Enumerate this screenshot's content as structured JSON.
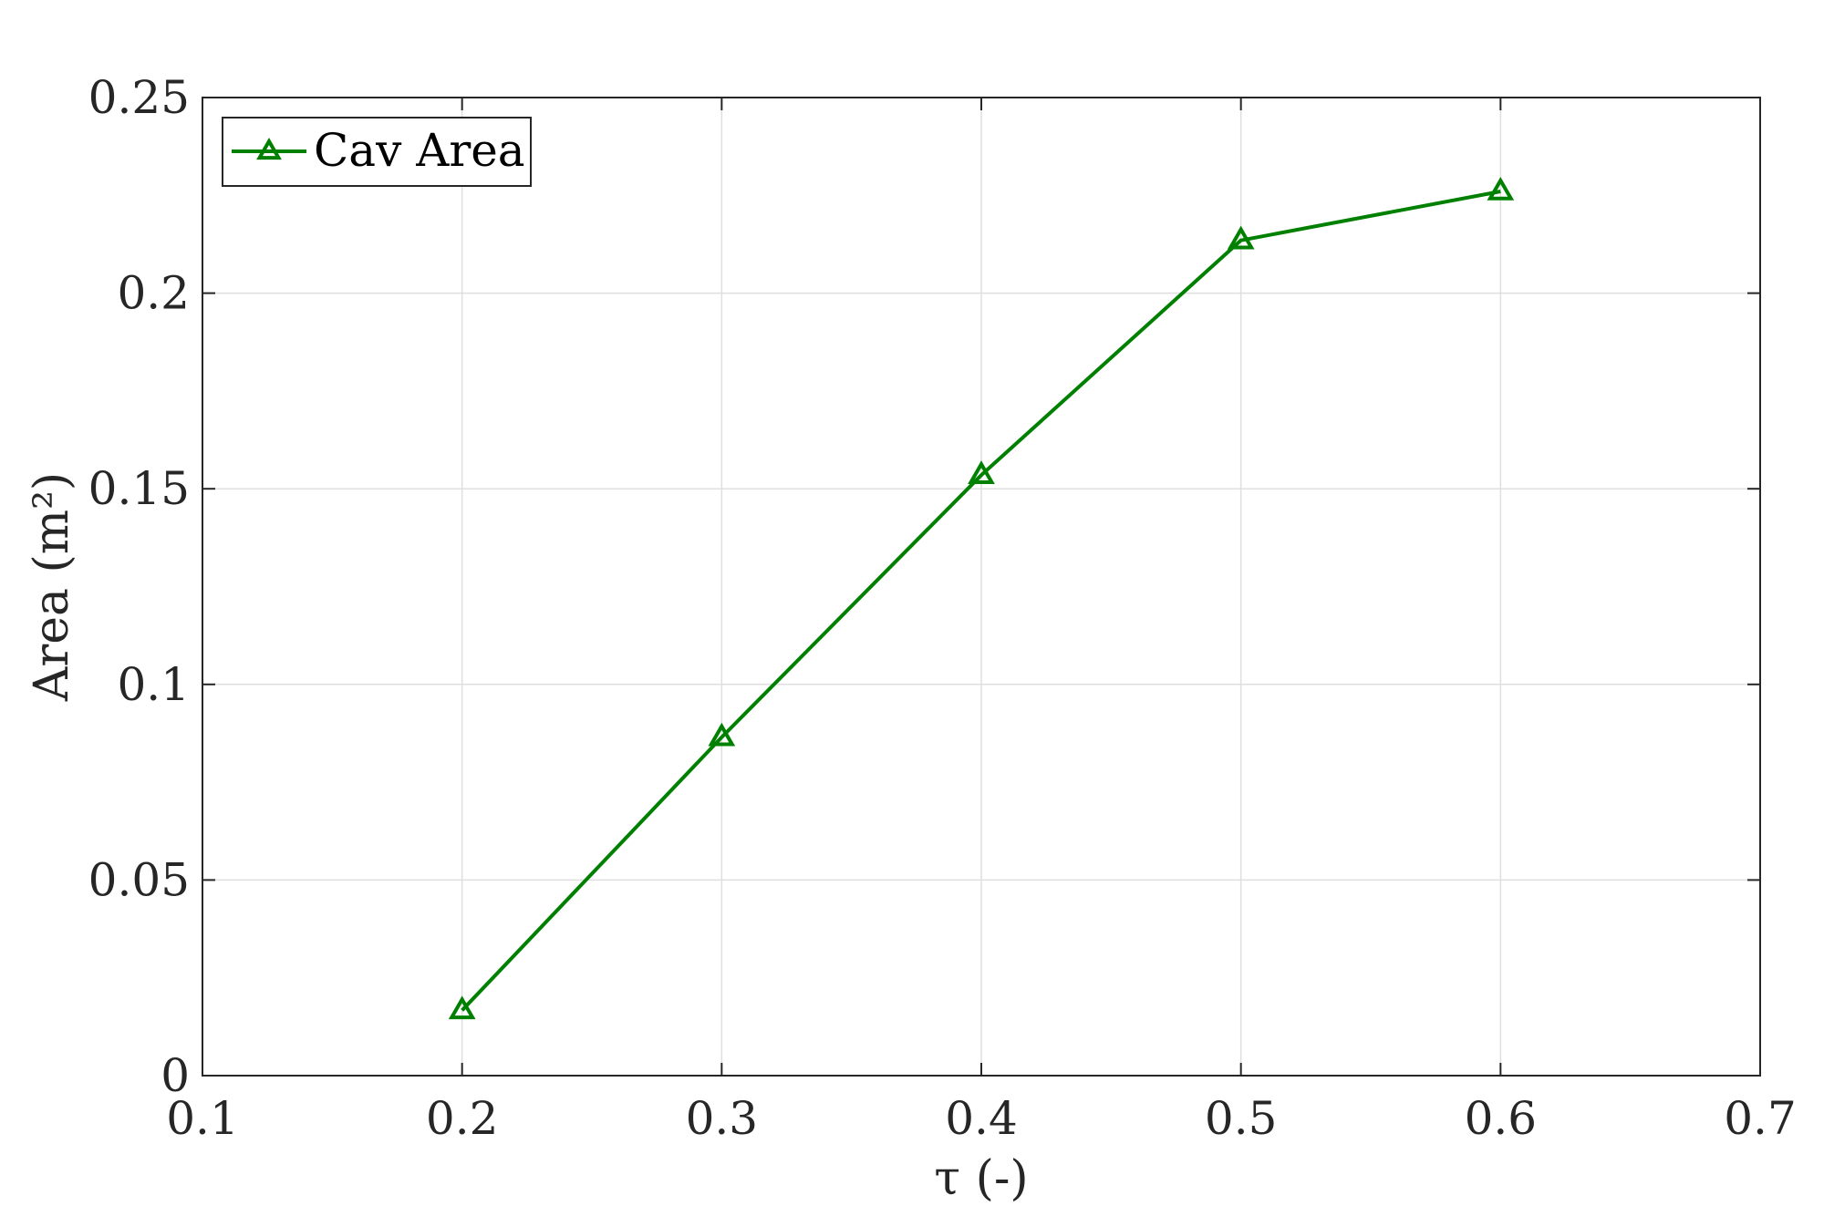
{
  "chart_data": {
    "type": "line",
    "xlabel": "τ (-)",
    "ylabel": "Area (m²)",
    "xlim": [
      0.1,
      0.7
    ],
    "ylim": [
      0,
      0.25
    ],
    "xticks": [
      0.1,
      0.2,
      0.3,
      0.4,
      0.5,
      0.6,
      0.7
    ],
    "yticks": [
      0,
      0.05,
      0.1,
      0.15,
      0.2,
      0.25
    ],
    "xtick_labels": [
      "0.1",
      "0.2",
      "0.3",
      "0.4",
      "0.5",
      "0.6",
      "0.7"
    ],
    "ytick_labels": [
      "0",
      "0.05",
      "0.1",
      "0.15",
      "0.2",
      "0.25"
    ],
    "grid": true,
    "legend_position": "top-left",
    "series": [
      {
        "name": "Cav Area",
        "color": "#008000",
        "marker": "triangle",
        "x": [
          0.2,
          0.3,
          0.4,
          0.5,
          0.6
        ],
        "y": [
          0.0167,
          0.0865,
          0.1535,
          0.2135,
          0.226
        ]
      }
    ]
  }
}
